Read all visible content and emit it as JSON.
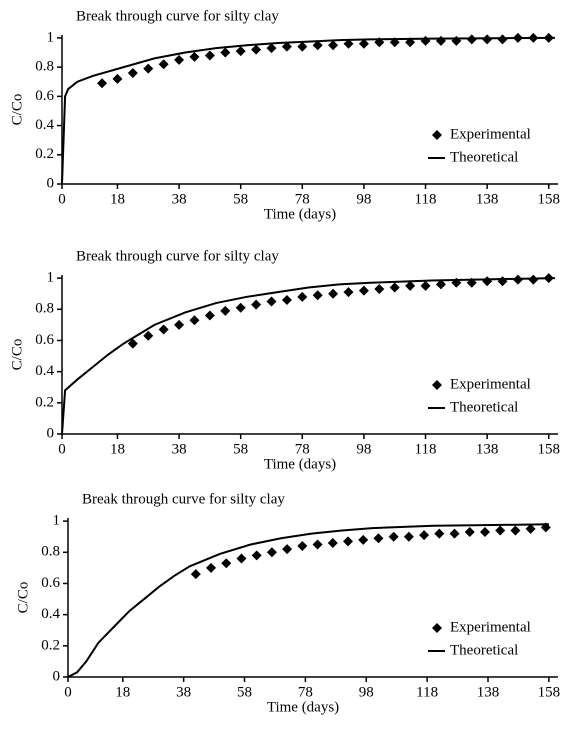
{
  "chart_data": [
    {
      "type": "line",
      "title": "Break through curve for silty clay",
      "xlabel": "Time (days)",
      "ylabel": "C/Co",
      "xlim": [
        0,
        161
      ],
      "ylim": [
        0,
        1.02
      ],
      "xticks": [
        0,
        18,
        38,
        58,
        78,
        98,
        118,
        138,
        158
      ],
      "yticks": [
        0,
        0.2,
        0.4,
        0.6,
        0.8,
        1
      ],
      "legend": "lower right",
      "series": [
        {
          "name": "Experimental",
          "type": "scatter",
          "color": "#000000",
          "x": [
            13,
            18,
            23,
            28,
            33,
            38,
            43,
            48,
            53,
            58,
            63,
            68,
            73,
            78,
            83,
            88,
            93,
            98,
            103,
            108,
            113,
            118,
            123,
            128,
            133,
            138,
            143,
            148,
            153,
            158
          ],
          "values": [
            0.69,
            0.72,
            0.76,
            0.79,
            0.82,
            0.85,
            0.87,
            0.88,
            0.9,
            0.91,
            0.92,
            0.93,
            0.94,
            0.94,
            0.95,
            0.95,
            0.96,
            0.96,
            0.97,
            0.97,
            0.97,
            0.98,
            0.98,
            0.98,
            0.99,
            0.99,
            0.99,
            1.0,
            1.0,
            1.0
          ]
        },
        {
          "name": "Theoretical",
          "type": "line",
          "color": "#000000",
          "x": [
            0,
            1,
            2,
            5,
            10,
            20,
            30,
            40,
            50,
            60,
            70,
            80,
            90,
            100,
            120,
            140,
            160
          ],
          "values": [
            0,
            0.6,
            0.65,
            0.7,
            0.74,
            0.8,
            0.86,
            0.9,
            0.93,
            0.95,
            0.965,
            0.975,
            0.985,
            0.99,
            0.995,
            0.998,
            1.0
          ]
        }
      ]
    },
    {
      "type": "line",
      "title": "Break through curve for silty clay",
      "xlabel": "Time (days)",
      "ylabel": "C/Co",
      "xlim": [
        0,
        161
      ],
      "ylim": [
        0,
        1.02
      ],
      "xticks": [
        0,
        18,
        38,
        58,
        78,
        98,
        118,
        138,
        158
      ],
      "yticks": [
        0,
        0.2,
        0.4,
        0.6,
        0.8,
        1
      ],
      "legend": "lower right",
      "series": [
        {
          "name": "Experimental",
          "type": "scatter",
          "color": "#000000",
          "x": [
            23,
            28,
            33,
            38,
            43,
            48,
            53,
            58,
            63,
            68,
            73,
            78,
            83,
            88,
            93,
            98,
            103,
            108,
            113,
            118,
            123,
            128,
            133,
            138,
            143,
            148,
            153,
            158
          ],
          "values": [
            0.58,
            0.63,
            0.67,
            0.7,
            0.73,
            0.76,
            0.79,
            0.81,
            0.83,
            0.85,
            0.86,
            0.88,
            0.89,
            0.9,
            0.91,
            0.92,
            0.93,
            0.94,
            0.95,
            0.95,
            0.96,
            0.97,
            0.97,
            0.98,
            0.98,
            0.99,
            0.99,
            1.0
          ]
        },
        {
          "name": "Theoretical",
          "type": "line",
          "color": "#000000",
          "x": [
            0,
            1,
            5,
            10,
            15,
            20,
            25,
            30,
            40,
            50,
            60,
            70,
            80,
            90,
            100,
            120,
            140,
            160
          ],
          "values": [
            0,
            0.28,
            0.35,
            0.43,
            0.51,
            0.58,
            0.64,
            0.7,
            0.78,
            0.84,
            0.88,
            0.91,
            0.94,
            0.96,
            0.97,
            0.985,
            0.993,
            1.0
          ]
        }
      ]
    },
    {
      "type": "line",
      "title": "Break through curve for silty clay",
      "xlabel": "Time (days)",
      "ylabel": "C/Co",
      "xlim": [
        0,
        161
      ],
      "ylim": [
        0,
        1.02
      ],
      "xticks": [
        0,
        18,
        38,
        58,
        78,
        98,
        118,
        138,
        158
      ],
      "yticks": [
        0,
        0.2,
        0.4,
        0.6,
        0.8,
        1
      ],
      "legend": "lower right",
      "series": [
        {
          "name": "Experimental",
          "type": "scatter",
          "color": "#000000",
          "x": [
            42,
            47,
            52,
            57,
            62,
            67,
            72,
            77,
            82,
            87,
            92,
            97,
            102,
            107,
            112,
            117,
            122,
            127,
            132,
            137,
            142,
            147,
            152,
            157
          ],
          "values": [
            0.66,
            0.7,
            0.73,
            0.76,
            0.78,
            0.8,
            0.82,
            0.84,
            0.85,
            0.86,
            0.87,
            0.88,
            0.89,
            0.9,
            0.9,
            0.91,
            0.92,
            0.92,
            0.93,
            0.93,
            0.94,
            0.94,
            0.95,
            0.96
          ]
        },
        {
          "name": "Theoretical",
          "type": "line",
          "color": "#000000",
          "x": [
            0,
            3,
            6,
            10,
            15,
            20,
            25,
            30,
            35,
            40,
            50,
            60,
            70,
            80,
            90,
            100,
            120,
            140,
            158
          ],
          "values": [
            0,
            0.03,
            0.1,
            0.22,
            0.32,
            0.42,
            0.5,
            0.58,
            0.65,
            0.71,
            0.79,
            0.85,
            0.89,
            0.92,
            0.94,
            0.955,
            0.97,
            0.975,
            0.98
          ]
        }
      ]
    }
  ]
}
